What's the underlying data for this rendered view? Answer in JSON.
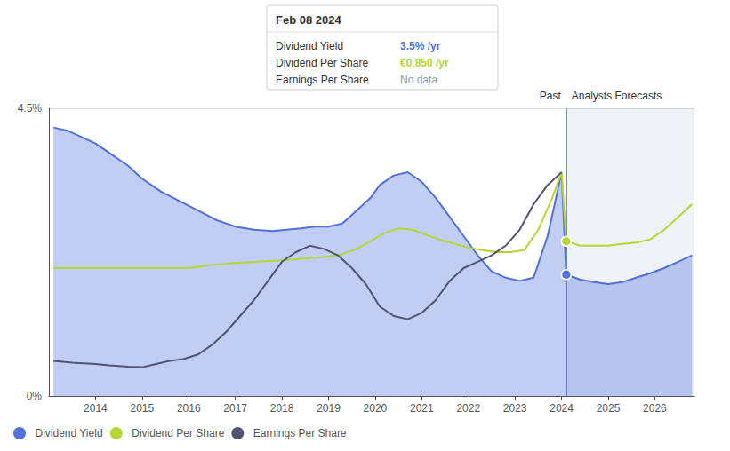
{
  "chart_data": {
    "type": "line",
    "xlim": [
      2013.0,
      2026.85
    ],
    "xticks": [
      2014,
      2015,
      2016,
      2017,
      2018,
      2019,
      2020,
      2021,
      2022,
      2023,
      2024,
      2025,
      2026
    ],
    "ylim": [
      0.0,
      4.5
    ],
    "yticks": [
      {
        "value": 0.0,
        "label": "0%"
      },
      {
        "value": 4.5,
        "label": "4.5%"
      }
    ],
    "grid": true,
    "legend": "lower left",
    "split": {
      "x": 2024.1,
      "past_label": "Past",
      "forecast_label": "Analysts Forecasts"
    },
    "series": [
      {
        "name": "Dividend Yield",
        "type": "area",
        "x": [
          2013.1,
          2013.4,
          2013.7,
          2014.0,
          2014.3,
          2014.7,
          2015.0,
          2015.4,
          2015.8,
          2016.2,
          2016.6,
          2017.0,
          2017.4,
          2017.8,
          2018.1,
          2018.4,
          2018.7,
          2019.0,
          2019.3,
          2019.6,
          2019.9,
          2020.1,
          2020.4,
          2020.7,
          2021.0,
          2021.3,
          2021.6,
          2021.9,
          2022.2,
          2022.5,
          2022.8,
          2023.1,
          2023.4,
          2023.7,
          2024.0,
          2024.1,
          2024.4,
          2024.7,
          2025.0,
          2025.3,
          2025.6,
          2025.9,
          2026.2,
          2026.5,
          2026.8
        ],
        "values": [
          4.2,
          4.15,
          4.05,
          3.95,
          3.8,
          3.6,
          3.4,
          3.2,
          3.05,
          2.9,
          2.75,
          2.65,
          2.6,
          2.58,
          2.6,
          2.62,
          2.65,
          2.65,
          2.7,
          2.9,
          3.1,
          3.3,
          3.45,
          3.5,
          3.35,
          3.1,
          2.8,
          2.5,
          2.2,
          1.95,
          1.85,
          1.8,
          1.85,
          2.5,
          3.5,
          1.9,
          1.82,
          1.78,
          1.75,
          1.78,
          1.85,
          1.92,
          2.0,
          2.1,
          2.2
        ]
      },
      {
        "name": "Dividend Per Share",
        "type": "line",
        "x": [
          2013.1,
          2013.5,
          2014.0,
          2014.5,
          2015.0,
          2015.5,
          2016.0,
          2016.5,
          2017.0,
          2017.5,
          2018.0,
          2018.5,
          2019.0,
          2019.3,
          2019.6,
          2019.9,
          2020.2,
          2020.5,
          2020.8,
          2021.1,
          2021.4,
          2021.7,
          2022.0,
          2022.3,
          2022.6,
          2022.9,
          2023.2,
          2023.5,
          2023.8,
          2024.0,
          2024.1,
          2024.4,
          2024.7,
          2025.0,
          2025.3,
          2025.6,
          2025.9,
          2026.2,
          2026.5,
          2026.8
        ],
        "values": [
          2.0,
          2.0,
          2.0,
          2.0,
          2.0,
          2.0,
          2.0,
          2.05,
          2.08,
          2.1,
          2.12,
          2.15,
          2.18,
          2.22,
          2.3,
          2.42,
          2.55,
          2.62,
          2.6,
          2.52,
          2.44,
          2.38,
          2.32,
          2.28,
          2.25,
          2.25,
          2.28,
          2.6,
          3.1,
          3.5,
          2.42,
          2.35,
          2.35,
          2.35,
          2.38,
          2.4,
          2.45,
          2.6,
          2.8,
          3.0
        ]
      },
      {
        "name": "Earnings Per Share",
        "type": "line",
        "x": [
          2013.1,
          2013.5,
          2014.0,
          2014.3,
          2014.7,
          2015.0,
          2015.3,
          2015.6,
          2015.9,
          2016.2,
          2016.5,
          2016.8,
          2017.1,
          2017.4,
          2017.7,
          2018.0,
          2018.3,
          2018.6,
          2018.9,
          2019.2,
          2019.5,
          2019.8,
          2020.1,
          2020.4,
          2020.7,
          2021.0,
          2021.3,
          2021.6,
          2021.9,
          2022.2,
          2022.5,
          2022.8,
          2023.1,
          2023.4,
          2023.7,
          2024.0
        ],
        "values": [
          0.55,
          0.52,
          0.5,
          0.48,
          0.46,
          0.45,
          0.5,
          0.55,
          0.58,
          0.65,
          0.8,
          1.0,
          1.25,
          1.5,
          1.8,
          2.1,
          2.25,
          2.35,
          2.3,
          2.2,
          2.0,
          1.75,
          1.4,
          1.25,
          1.2,
          1.3,
          1.5,
          1.8,
          2.0,
          2.1,
          2.2,
          2.35,
          2.6,
          3.0,
          3.3,
          3.5
        ]
      }
    ],
    "markers": [
      {
        "series": "Dividend Yield",
        "x": 2024.1,
        "y": 1.9
      },
      {
        "series": "Dividend Per Share",
        "x": 2024.1,
        "y": 2.42
      }
    ],
    "tooltip": {
      "title": "Feb 08 2024",
      "rows": [
        {
          "label": "Dividend Yield",
          "value": "3.5% /yr"
        },
        {
          "label": "Dividend Per Share",
          "value": "€0.850 /yr"
        },
        {
          "label": "Earnings Per Share",
          "value": "No data",
          "color": "#8899aa"
        }
      ]
    }
  }
}
